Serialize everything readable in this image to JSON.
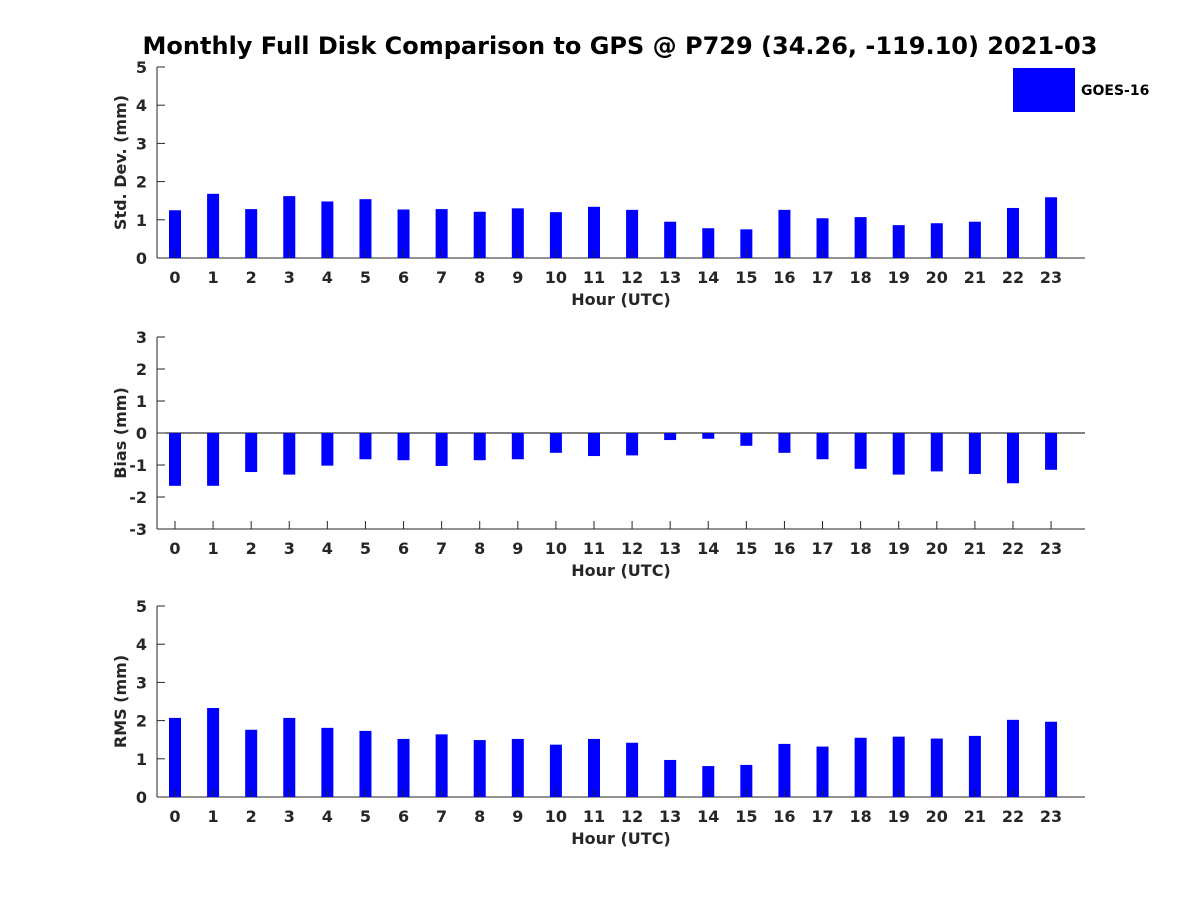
{
  "title": "Monthly Full Disk Comparison to GPS @ P729 (34.26, -119.10) 2021-03",
  "legend": {
    "label": "GOES-16",
    "color": "#0000ff",
    "placement": "top-right"
  },
  "bar_color": "#0000ff",
  "chart_data": [
    {
      "type": "bar",
      "xlabel": "Hour (UTC)",
      "ylabel": "Std. Dev. (mm)",
      "ylim": [
        0,
        5
      ],
      "yticks": [
        0,
        1,
        2,
        3,
        4,
        5
      ],
      "categories": [
        "0",
        "1",
        "2",
        "3",
        "4",
        "5",
        "6",
        "7",
        "8",
        "9",
        "10",
        "11",
        "12",
        "13",
        "14",
        "15",
        "16",
        "17",
        "18",
        "19",
        "20",
        "21",
        "22",
        "23"
      ],
      "series": [
        {
          "name": "GOES-16",
          "values": [
            1.25,
            1.68,
            1.28,
            1.62,
            1.48,
            1.54,
            1.27,
            1.28,
            1.21,
            1.3,
            1.2,
            1.34,
            1.26,
            0.95,
            0.78,
            0.75,
            1.26,
            1.04,
            1.07,
            0.86,
            0.91,
            0.95,
            1.31,
            1.59
          ]
        }
      ],
      "grid": false
    },
    {
      "type": "bar",
      "xlabel": "Hour (UTC)",
      "ylabel": "Bias (mm)",
      "ylim": [
        -3,
        3
      ],
      "yticks": [
        -3,
        -2,
        -1,
        0,
        1,
        2,
        3
      ],
      "categories": [
        "0",
        "1",
        "2",
        "3",
        "4",
        "5",
        "6",
        "7",
        "8",
        "9",
        "10",
        "11",
        "12",
        "13",
        "14",
        "15",
        "16",
        "17",
        "18",
        "19",
        "20",
        "21",
        "22",
        "23"
      ],
      "series": [
        {
          "name": "GOES-16",
          "values": [
            -1.65,
            -1.65,
            -1.22,
            -1.3,
            -1.02,
            -0.82,
            -0.85,
            -1.03,
            -0.85,
            -0.82,
            -0.62,
            -0.72,
            -0.7,
            -0.22,
            -0.18,
            -0.4,
            -0.62,
            -0.82,
            -1.12,
            -1.3,
            -1.2,
            -1.28,
            -1.57,
            -1.15
          ]
        }
      ],
      "zero_line": true,
      "grid": false
    },
    {
      "type": "bar",
      "xlabel": "Hour (UTC)",
      "ylabel": "RMS (mm)",
      "ylim": [
        0,
        5
      ],
      "yticks": [
        0,
        1,
        2,
        3,
        4,
        5
      ],
      "categories": [
        "0",
        "1",
        "2",
        "3",
        "4",
        "5",
        "6",
        "7",
        "8",
        "9",
        "10",
        "11",
        "12",
        "13",
        "14",
        "15",
        "16",
        "17",
        "18",
        "19",
        "20",
        "21",
        "22",
        "23"
      ],
      "series": [
        {
          "name": "GOES-16",
          "values": [
            2.07,
            2.33,
            1.76,
            2.07,
            1.81,
            1.73,
            1.52,
            1.64,
            1.49,
            1.52,
            1.37,
            1.52,
            1.42,
            0.97,
            0.81,
            0.84,
            1.39,
            1.32,
            1.55,
            1.58,
            1.53,
            1.6,
            2.02,
            1.97
          ]
        }
      ],
      "grid": false
    }
  ]
}
